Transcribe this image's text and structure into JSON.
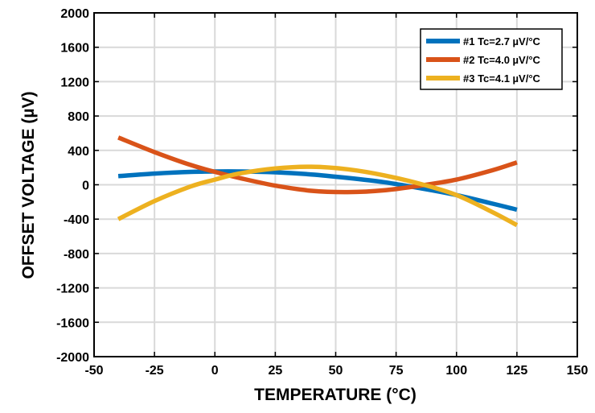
{
  "chart_data": {
    "type": "line",
    "title": "",
    "xlabel": "TEMPERATURE (°C)",
    "ylabel": "OFFSET VOLTAGE (µV)",
    "xlim": [
      -50,
      150
    ],
    "ylim": [
      -2000,
      2000
    ],
    "xticks": [
      -50,
      -25,
      0,
      25,
      50,
      75,
      100,
      125,
      150
    ],
    "yticks": [
      2000,
      1600,
      1200,
      800,
      400,
      0,
      -400,
      -800,
      -1200,
      -1600,
      -2000
    ],
    "grid": true,
    "legend_position": "top-right",
    "series": [
      {
        "name": "#1 Tc=2.7 µV/°C",
        "color": "#0072BD",
        "x": [
          -40,
          -25,
          -10,
          0,
          10,
          25,
          40,
          55,
          70,
          85,
          100,
          115,
          125
        ],
        "y": [
          100,
          130,
          150,
          155,
          155,
          145,
          120,
          80,
          30,
          -40,
          -120,
          -220,
          -290
        ]
      },
      {
        "name": "#2 Tc=4.0 µV/°C",
        "color": "#D95319",
        "x": [
          -40,
          -25,
          -10,
          0,
          10,
          25,
          40,
          55,
          70,
          85,
          100,
          115,
          125
        ],
        "y": [
          550,
          380,
          230,
          150,
          80,
          -10,
          -70,
          -85,
          -65,
          -10,
          60,
          170,
          260
        ]
      },
      {
        "name": "#3 Tc=4.1 µV/°C",
        "color": "#EDB120",
        "x": [
          -40,
          -25,
          -10,
          0,
          10,
          25,
          40,
          55,
          70,
          85,
          100,
          115,
          125
        ],
        "y": [
          -400,
          -190,
          -20,
          60,
          130,
          190,
          210,
          180,
          110,
          10,
          -120,
          -320,
          -470
        ]
      }
    ]
  }
}
